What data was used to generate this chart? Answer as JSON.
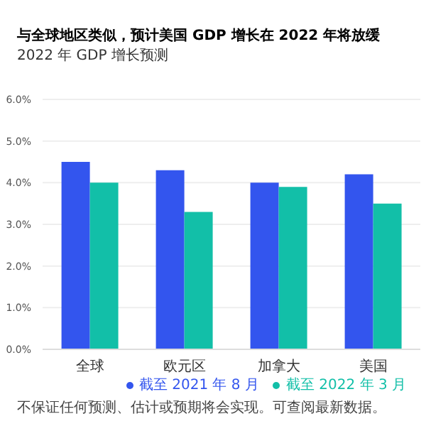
{
  "chart_data": {
    "type": "bar",
    "title": "与全球地区类似，预计美国 GDP 增长在 2022 年将放缓",
    "subtitle": "2022 年 GDP 增长预测",
    "categories": [
      "全球",
      "欧元区",
      "加拿大",
      "美国"
    ],
    "series": [
      {
        "name": "截至 2021 年 8 月",
        "color": "#3355ee",
        "values": [
          4.5,
          4.3,
          4.0,
          4.2
        ]
      },
      {
        "name": "截至 2022 年 3 月",
        "color": "#12bfa8",
        "values": [
          4.0,
          3.3,
          3.9,
          3.5
        ]
      }
    ],
    "ylim": [
      0,
      6
    ],
    "yticks": [
      {
        "value": 0,
        "label": "0.0%"
      },
      {
        "value": 1,
        "label": "1.0%"
      },
      {
        "value": 2,
        "label": "2.0%"
      },
      {
        "value": 3,
        "label": "3.0%"
      },
      {
        "value": 4,
        "label": "4.0%"
      },
      {
        "value": 5,
        "label": "5.0%"
      },
      {
        "value": 6,
        "label": "6.0%"
      }
    ],
    "grid": "y",
    "legend": "bottom right",
    "annotations": [
      "不保证任何预测、估计或预期将会实现。可查阅最新数据。"
    ]
  }
}
